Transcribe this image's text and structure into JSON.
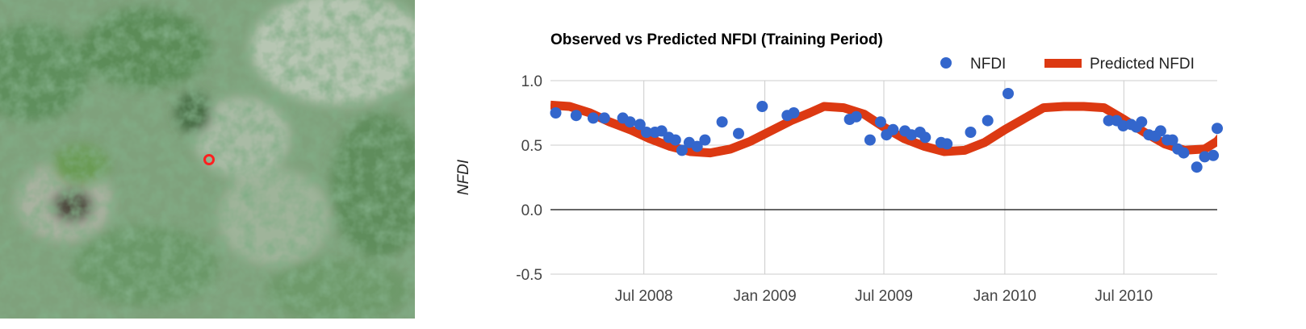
{
  "map": {
    "marker_color": "#ff2020"
  },
  "chart_data": {
    "type": "scatter",
    "title": "Observed vs Predicted NFDI (Training Period)",
    "ylabel": "NFDI",
    "xlabel": "",
    "ylim": [
      -0.5,
      1.0
    ],
    "xlim": [
      "2008-02-10",
      "2010-11-20"
    ],
    "grid": true,
    "legend_position": "top-right",
    "y_ticks": [
      {
        "value": 1.0,
        "label": "1.0"
      },
      {
        "value": 0.5,
        "label": "0.5"
      },
      {
        "value": 0.0,
        "label": "0.0"
      },
      {
        "value": -0.5,
        "label": "-0.5"
      }
    ],
    "x_ticks": [
      {
        "date": "2008-07-01",
        "label": "Jul 2008"
      },
      {
        "date": "2009-01-01",
        "label": "Jan 2009"
      },
      {
        "date": "2009-07-01",
        "label": "Jul 2009"
      },
      {
        "date": "2010-01-01",
        "label": "Jan 2010"
      },
      {
        "date": "2010-07-01",
        "label": "Jul 2010"
      }
    ],
    "series": [
      {
        "name": "NFDI",
        "style": "points",
        "color": "#3366cc",
        "points": [
          [
            "2008-02-18",
            0.75
          ],
          [
            "2008-03-20",
            0.73
          ],
          [
            "2008-04-15",
            0.71
          ],
          [
            "2008-05-02",
            0.71
          ],
          [
            "2008-05-30",
            0.71
          ],
          [
            "2008-06-10",
            0.68
          ],
          [
            "2008-06-25",
            0.66
          ],
          [
            "2008-07-05",
            0.6
          ],
          [
            "2008-07-18",
            0.6
          ],
          [
            "2008-07-28",
            0.61
          ],
          [
            "2008-08-08",
            0.56
          ],
          [
            "2008-08-18",
            0.54
          ],
          [
            "2008-08-28",
            0.46
          ],
          [
            "2008-09-08",
            0.52
          ],
          [
            "2008-09-20",
            0.49
          ],
          [
            "2008-10-02",
            0.54
          ],
          [
            "2008-10-28",
            0.68
          ],
          [
            "2008-11-22",
            0.59
          ],
          [
            "2008-12-28",
            0.8
          ],
          [
            "2009-02-04",
            0.73
          ],
          [
            "2009-02-14",
            0.75
          ],
          [
            "2009-05-10",
            0.7
          ],
          [
            "2009-05-20",
            0.72
          ],
          [
            "2009-06-10",
            0.54
          ],
          [
            "2009-06-26",
            0.68
          ],
          [
            "2009-07-05",
            0.58
          ],
          [
            "2009-07-15",
            0.62
          ],
          [
            "2009-08-02",
            0.61
          ],
          [
            "2009-08-12",
            0.58
          ],
          [
            "2009-08-25",
            0.6
          ],
          [
            "2009-09-02",
            0.56
          ],
          [
            "2009-09-26",
            0.52
          ],
          [
            "2009-10-05",
            0.51
          ],
          [
            "2009-11-10",
            0.6
          ],
          [
            "2009-12-06",
            0.69
          ],
          [
            "2010-01-06",
            0.9
          ],
          [
            "2010-06-08",
            0.69
          ],
          [
            "2010-06-20",
            0.69
          ],
          [
            "2010-06-30",
            0.65
          ],
          [
            "2010-07-12",
            0.66
          ],
          [
            "2010-07-20",
            0.64
          ],
          [
            "2010-07-28",
            0.68
          ],
          [
            "2010-08-08",
            0.58
          ],
          [
            "2010-08-18",
            0.57
          ],
          [
            "2010-08-26",
            0.61
          ],
          [
            "2010-09-05",
            0.54
          ],
          [
            "2010-09-13",
            0.54
          ],
          [
            "2010-09-21",
            0.47
          ],
          [
            "2010-09-30",
            0.44
          ],
          [
            "2010-10-20",
            0.33
          ],
          [
            "2010-11-01",
            0.41
          ],
          [
            "2010-11-14",
            0.42
          ],
          [
            "2010-11-20",
            0.63
          ]
        ]
      },
      {
        "name": "Predicted NFDI",
        "style": "line",
        "color": "#dc3912",
        "points": [
          [
            "2008-02-10",
            0.81
          ],
          [
            "2008-03-10",
            0.8
          ],
          [
            "2008-04-10",
            0.75
          ],
          [
            "2008-05-10",
            0.68
          ],
          [
            "2008-06-10",
            0.62
          ],
          [
            "2008-07-10",
            0.55
          ],
          [
            "2008-08-10",
            0.49
          ],
          [
            "2008-09-10",
            0.45
          ],
          [
            "2008-10-10",
            0.44
          ],
          [
            "2008-11-10",
            0.47
          ],
          [
            "2008-12-10",
            0.53
          ],
          [
            "2009-01-10",
            0.61
          ],
          [
            "2009-02-10",
            0.69
          ],
          [
            "2009-03-10",
            0.75
          ],
          [
            "2009-04-01",
            0.8
          ],
          [
            "2009-05-01",
            0.79
          ],
          [
            "2009-06-01",
            0.74
          ],
          [
            "2009-07-01",
            0.64
          ],
          [
            "2009-08-01",
            0.55
          ],
          [
            "2009-09-01",
            0.49
          ],
          [
            "2009-10-01",
            0.45
          ],
          [
            "2009-11-01",
            0.46
          ],
          [
            "2009-12-01",
            0.52
          ],
          [
            "2010-01-01",
            0.62
          ],
          [
            "2010-02-01",
            0.71
          ],
          [
            "2010-03-01",
            0.79
          ],
          [
            "2010-04-01",
            0.8
          ],
          [
            "2010-05-01",
            0.8
          ],
          [
            "2010-06-01",
            0.79
          ],
          [
            "2010-07-01",
            0.7
          ],
          [
            "2010-08-01",
            0.6
          ],
          [
            "2010-09-01",
            0.51
          ],
          [
            "2010-10-01",
            0.46
          ],
          [
            "2010-11-01",
            0.47
          ],
          [
            "2010-11-20",
            0.53
          ],
          [
            "2010-12-01",
            0.6
          ]
        ]
      }
    ]
  }
}
